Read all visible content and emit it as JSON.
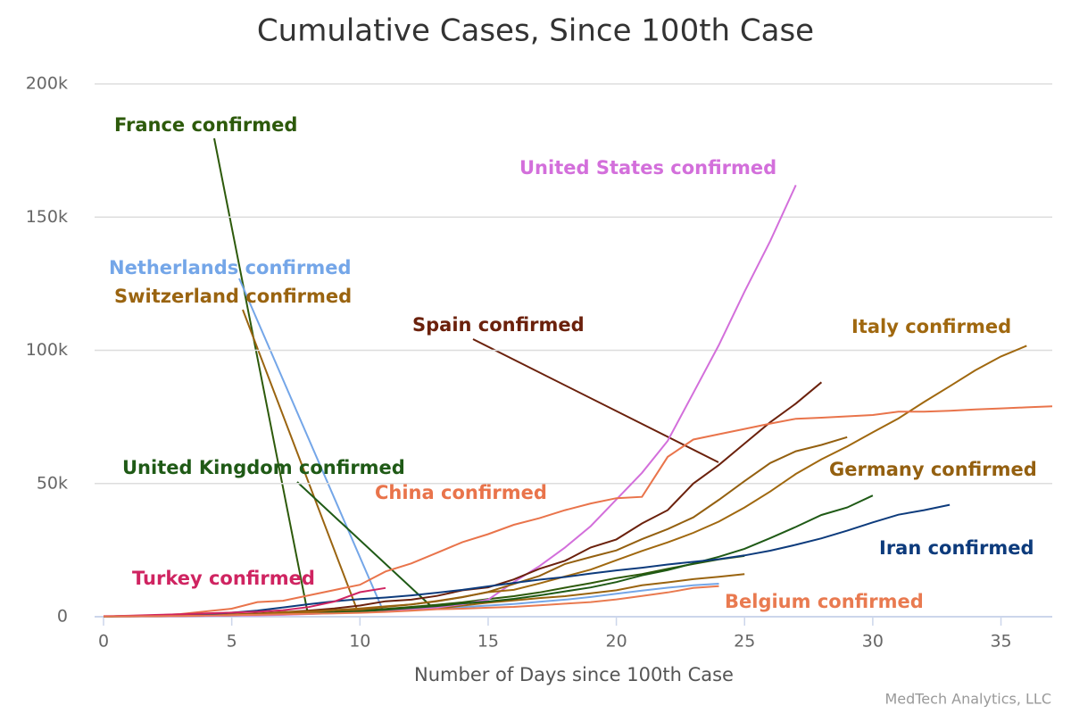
{
  "chart_data": {
    "type": "line",
    "title": "Cumulative Cases, Since 100th Case",
    "x_label": "Number of Days since 100th Case",
    "credit": "MedTech Analytics, LLC",
    "x": [
      0,
      1,
      2,
      3,
      4,
      5,
      6,
      7,
      8,
      9,
      10,
      11,
      12,
      13,
      14,
      15,
      16,
      17,
      18,
      19,
      20,
      21,
      22,
      23,
      24,
      25,
      26,
      27,
      28,
      29,
      30,
      31,
      32,
      33,
      34,
      35,
      36,
      37
    ],
    "xlim": [
      0,
      37
    ],
    "xticks": [
      0,
      5,
      10,
      15,
      20,
      25,
      30,
      35
    ],
    "ylim": [
      0,
      200000
    ],
    "yticks": [
      0,
      {
        "value": 50000,
        "label": "50k"
      },
      {
        "value": 100000,
        "label": "100k"
      },
      {
        "value": 150000,
        "label": "150k"
      },
      {
        "value": 200000,
        "label": "200k"
      }
    ],
    "grid": true,
    "series": [
      {
        "name": "France confirmed",
        "color": "#2d5a0b",
        "values": [
          100,
          190,
          240,
          290,
          420,
          650,
          950,
          1100,
          1400,
          1800,
          2300,
          2900,
          3700,
          4500,
          5400,
          6600,
          7700,
          9100,
          10900,
          12600,
          14500,
          16000,
          18000,
          19800,
          21500,
          22800,
          null,
          null,
          null,
          null,
          null,
          null,
          null,
          null,
          null,
          null,
          null,
          null
        ]
      },
      {
        "name": "Netherlands confirmed",
        "color": "#74a6e8",
        "values": [
          130,
          190,
          270,
          320,
          380,
          500,
          600,
          800,
          1100,
          1400,
          1700,
          2100,
          2500,
          3000,
          3600,
          4200,
          4800,
          5600,
          6400,
          7400,
          8600,
          9800,
          10900,
          11800,
          12400,
          null,
          null,
          null,
          null,
          null,
          null,
          null,
          null,
          null,
          null,
          null,
          null,
          null
        ]
      },
      {
        "name": "Switzerland confirmed",
        "color": "#9a6410",
        "values": [
          110,
          150,
          210,
          260,
          340,
          490,
          650,
          860,
          1100,
          1400,
          2200,
          2300,
          2700,
          3000,
          4200,
          5300,
          6100,
          7000,
          7700,
          8800,
          9900,
          11800,
          12900,
          14100,
          15000,
          16000,
          null,
          null,
          null,
          null,
          null,
          null,
          null,
          null,
          null,
          null,
          null,
          null
        ]
      },
      {
        "name": "United States confirmed",
        "color": "#d36fdb",
        "values": [
          100,
          120,
          150,
          200,
          300,
          400,
          500,
          700,
          1000,
          1300,
          1700,
          2200,
          2900,
          3500,
          4700,
          6400,
          13000,
          19000,
          26000,
          34000,
          44000,
          54000,
          66000,
          84000,
          102000,
          122000,
          141000,
          162000,
          null,
          null,
          null,
          null,
          null,
          null,
          null,
          null,
          null,
          null
        ]
      },
      {
        "name": "Spain confirmed",
        "color": "#6b210c",
        "values": [
          100,
          150,
          200,
          400,
          500,
          700,
          1200,
          1700,
          2300,
          3100,
          4200,
          5800,
          6400,
          7800,
          9900,
          11000,
          14000,
          18000,
          21000,
          26000,
          29000,
          35000,
          40000,
          50000,
          57000,
          65000,
          73000,
          80000,
          88000,
          null,
          null,
          null,
          null,
          null,
          null,
          null,
          null,
          null
        ]
      },
      {
        "name": "Italy confirmed",
        "color": "#a0680f",
        "values": [
          150,
          200,
          300,
          400,
          650,
          900,
          1100,
          1700,
          2000,
          2500,
          3100,
          3900,
          4600,
          5900,
          7400,
          9200,
          10100,
          12500,
          15100,
          17700,
          21200,
          24700,
          27900,
          31500,
          35700,
          41000,
          47000,
          53600,
          59100,
          63900,
          69200,
          74400,
          80600,
          86500,
          92500,
          97700,
          101700,
          null
        ]
      },
      {
        "name": "United Kingdom confirmed",
        "color": "#1f5a16",
        "values": [
          100,
          200,
          300,
          400,
          500,
          600,
          800,
          1100,
          1400,
          1500,
          2000,
          2600,
          3300,
          4000,
          5000,
          5700,
          6700,
          8000,
          9500,
          11000,
          13000,
          15500,
          17500,
          20000,
          22500,
          25500,
          29500,
          33700,
          38200,
          41000,
          45500,
          null,
          null,
          null,
          null,
          null,
          null,
          null
        ]
      },
      {
        "name": "Germany confirmed",
        "color": "#946010",
        "values": [
          130,
          200,
          260,
          480,
          670,
          800,
          1000,
          1200,
          1600,
          2400,
          2700,
          3700,
          4600,
          5800,
          7300,
          9300,
          12300,
          15300,
          19800,
          22400,
          24900,
          29100,
          32900,
          37300,
          43900,
          50900,
          57700,
          62100,
          64500,
          67400,
          null,
          null,
          null,
          null,
          null,
          null,
          null,
          null
        ]
      },
      {
        "name": "China confirmed",
        "color": "#e9744b",
        "values": [
          100,
          300,
          500,
          1000,
          2000,
          3000,
          5500,
          6000,
          8000,
          10000,
          12000,
          17000,
          20000,
          24000,
          28000,
          31000,
          34500,
          37000,
          40000,
          42500,
          44500,
          45000,
          60000,
          66500,
          68500,
          70500,
          72500,
          74300,
          74700,
          75200,
          75700,
          77000,
          77000,
          77300,
          77800,
          78200,
          78600,
          79000
        ]
      },
      {
        "name": "Iran confirmed",
        "color": "#0d3b7c",
        "values": [
          100,
          250,
          400,
          600,
          1000,
          1500,
          2300,
          3500,
          4700,
          5800,
          6600,
          7200,
          8000,
          9000,
          10100,
          11400,
          12700,
          13900,
          14900,
          16200,
          17400,
          18400,
          19600,
          20600,
          21600,
          23000,
          24800,
          27000,
          29400,
          32300,
          35400,
          38300,
          40000,
          42000,
          null,
          null,
          null,
          null
        ]
      },
      {
        "name": "Turkey confirmed",
        "color": "#cf2461",
        "values": [
          190,
          360,
          670,
          950,
          1240,
          1530,
          1870,
          2430,
          3630,
          5700,
          9200,
          10800,
          null,
          null,
          null,
          null,
          null,
          null,
          null,
          null,
          null,
          null,
          null,
          null,
          null,
          null,
          null,
          null,
          null,
          null,
          null,
          null,
          null,
          null,
          null,
          null,
          null,
          null
        ]
      },
      {
        "name": "Belgium confirmed",
        "color": "#e97a50",
        "values": [
          110,
          170,
          200,
          310,
          400,
          560,
          690,
          890,
          1090,
          1240,
          1490,
          1800,
          2260,
          2800,
          3000,
          3400,
          3700,
          4300,
          4900,
          5500,
          6500,
          7800,
          9100,
          10800,
          11500,
          null,
          null,
          null,
          null,
          null,
          null,
          null,
          null,
          null,
          null,
          null,
          null,
          null
        ]
      }
    ]
  }
}
